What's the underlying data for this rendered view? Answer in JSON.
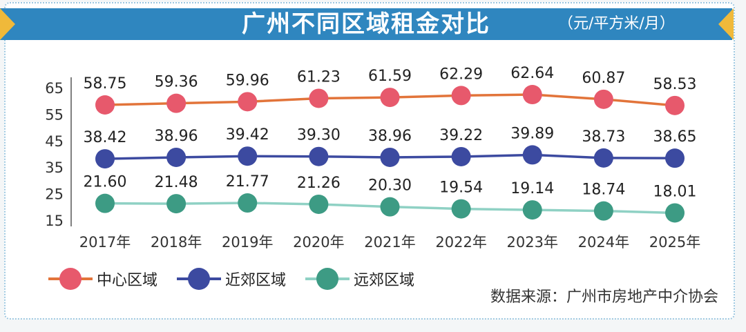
{
  "header": {
    "title": "广州不同区域租金对比",
    "unit": "（元/平方米/月）"
  },
  "source": "数据来源：广州市房地产中介协会",
  "colors": {
    "banner": "#2f86bf",
    "banner_tips": "#f0b93a",
    "central": "#e7596c",
    "central_line": "#e2743a",
    "suburban_near": "#3c4aa0",
    "suburban_far": "#3d9b84",
    "suburban_far_line": "#8fd1c4"
  },
  "chart_data": {
    "type": "line",
    "categories": [
      "2017年",
      "2018年",
      "2019年",
      "2020年",
      "2021年",
      "2022年",
      "2023年",
      "2024年",
      "2025年"
    ],
    "y_ticks": [
      65,
      55,
      45,
      35,
      25,
      15
    ],
    "ylim": [
      15,
      65
    ],
    "series": [
      {
        "name": "中心区域",
        "values": [
          58.75,
          59.36,
          59.96,
          61.23,
          61.59,
          62.29,
          62.64,
          60.87,
          58.53
        ],
        "labels": [
          "58.75",
          "59.36",
          "59.96",
          "61.23",
          "61.59",
          "62.29",
          "62.64",
          "60.87",
          "58.53"
        ]
      },
      {
        "name": "近郊区域",
        "values": [
          38.42,
          38.96,
          39.42,
          39.3,
          38.96,
          39.22,
          39.89,
          38.73,
          38.65
        ],
        "labels": [
          "38.42",
          "38.96",
          "39.42",
          "39.30",
          "38.96",
          "39.22",
          "39.89",
          "38.73",
          "38.65"
        ]
      },
      {
        "name": "远郊区域",
        "values": [
          21.6,
          21.48,
          21.77,
          21.26,
          20.3,
          19.54,
          19.14,
          18.74,
          18.01
        ],
        "labels": [
          "21.60",
          "21.48",
          "21.77",
          "21.26",
          "20.30",
          "19.54",
          "19.14",
          "18.74",
          "18.01"
        ]
      }
    ],
    "legend_position": "bottom-left",
    "grid": false
  }
}
